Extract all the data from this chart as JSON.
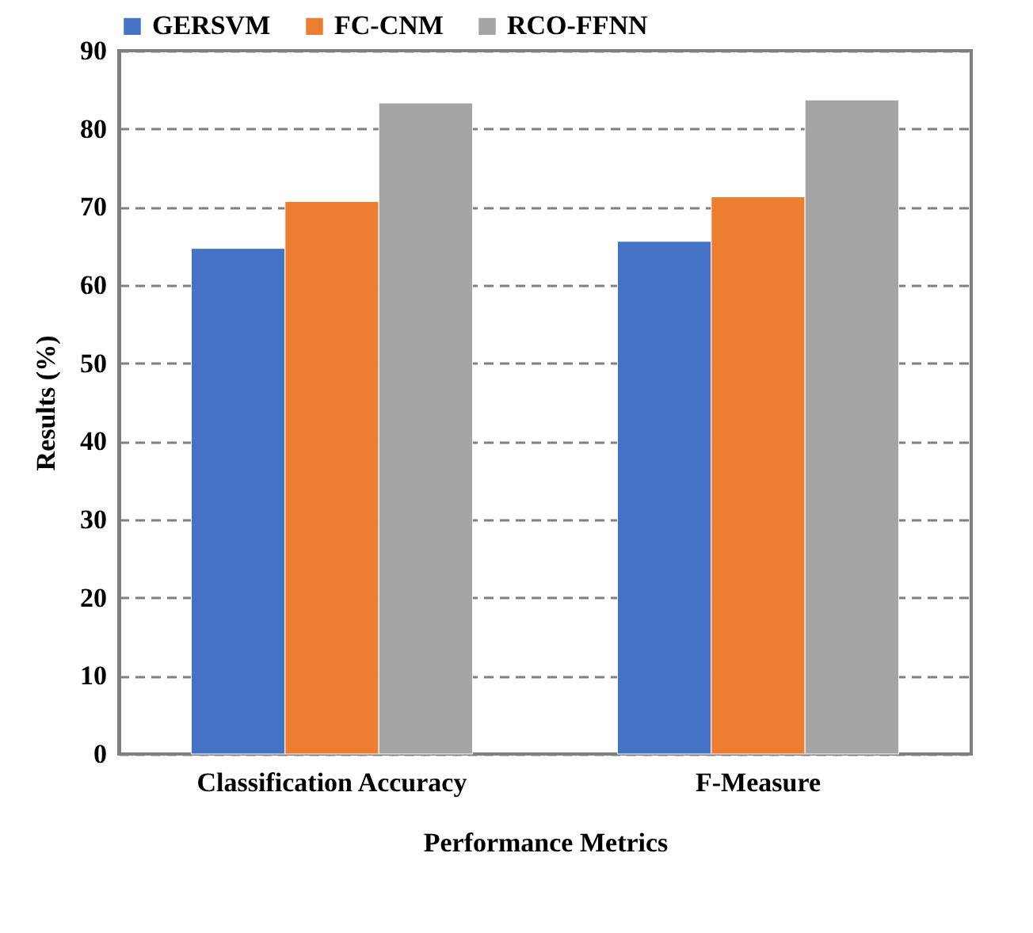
{
  "chart_data": {
    "type": "bar",
    "xlabel": "Performance Metrics",
    "ylabel": "Results (%)",
    "categories": [
      "Classification Accuracy",
      "F-Measure"
    ],
    "series": [
      {
        "name": "GERSVM",
        "color": "#4472c4",
        "values": [
          64.7,
          65.6
        ]
      },
      {
        "name": "FC-CNM",
        "color": "#ed7d31",
        "values": [
          70.7,
          71.3
        ]
      },
      {
        "name": "RCO-FFNN",
        "color": "#a5a5a5",
        "values": [
          83.3,
          83.7
        ]
      }
    ],
    "ylim": [
      0,
      90
    ],
    "yticks": [
      0,
      10,
      20,
      30,
      40,
      50,
      60,
      70,
      80,
      90
    ],
    "grid": "y",
    "line_style": "dashed",
    "legend": "top"
  }
}
